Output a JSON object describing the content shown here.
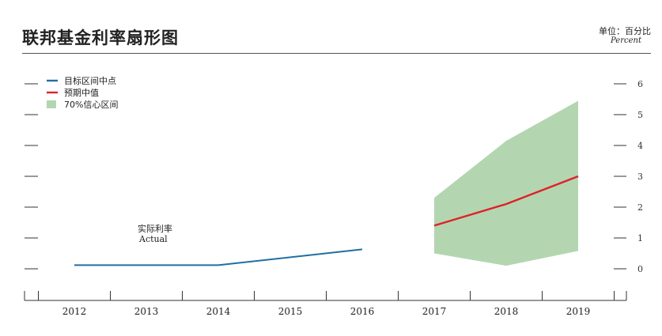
{
  "header": {
    "title": "联邦基金利率扇形图",
    "unit_label": "单位：百分比",
    "unit_label_en": "Percent"
  },
  "chart_data": {
    "type": "line",
    "title": "联邦基金利率扇形图",
    "xlabel": "",
    "ylabel": "单位：百分比",
    "categories": [
      "2012",
      "2013",
      "2014",
      "2015",
      "2016",
      "2017",
      "2018",
      "2019"
    ],
    "ylim": [
      0,
      6
    ],
    "y_ticks": [
      0,
      1,
      2,
      3,
      4,
      5,
      6
    ],
    "grid": false,
    "legend_position": "top-left",
    "legend": [
      {
        "label": "目标区间中点",
        "kind": "line",
        "color": "#1f6fa3"
      },
      {
        "label": "预期中值",
        "kind": "line",
        "color": "#e0202a"
      },
      {
        "label": "70%信心区间",
        "kind": "band",
        "color": "#b3d6b0"
      }
    ],
    "series": [
      {
        "name": "目标区间中点",
        "color": "#1f6fa3",
        "x": [
          "2012",
          "2014",
          "2016"
        ],
        "y": [
          0.12,
          0.12,
          0.63
        ]
      },
      {
        "name": "预期中值",
        "color": "#e0202a",
        "x": [
          "2017",
          "2018",
          "2019"
        ],
        "y": [
          1.4,
          2.1,
          3.0
        ]
      }
    ],
    "band": {
      "name": "70%信心区间",
      "color": "#b3d6b0",
      "x": [
        "2017",
        "2018",
        "2019"
      ],
      "upper": [
        2.3,
        4.15,
        5.45
      ],
      "lower": [
        0.5,
        0.1,
        0.58
      ]
    },
    "annotations": [
      {
        "text": "实际利率",
        "text_en": "Actual",
        "x": "2013",
        "y": 1.1
      }
    ]
  }
}
